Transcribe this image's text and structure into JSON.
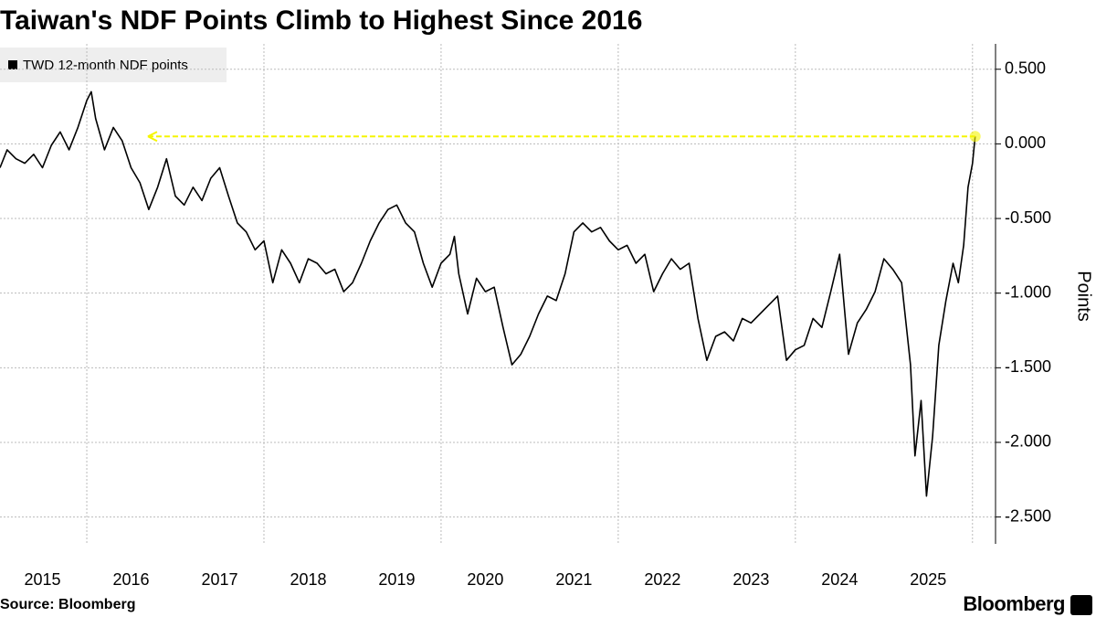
{
  "chart_data": {
    "type": "line",
    "title": "Taiwan's NDF Points Climb to Highest Since 2016",
    "y_label": "Points",
    "source": "Source: Bloomberg",
    "brand": "Bloomberg",
    "xlim": [
      2015.02,
      2026.26
    ],
    "ylim": [
      -2.68,
      0.67
    ],
    "xticks": [
      {
        "value": 2015.5,
        "label": "2015"
      },
      {
        "value": 2016.5,
        "label": "2016"
      },
      {
        "value": 2017.5,
        "label": "2017"
      },
      {
        "value": 2018.5,
        "label": "2018"
      },
      {
        "value": 2019.5,
        "label": "2019"
      },
      {
        "value": 2020.5,
        "label": "2020"
      },
      {
        "value": 2021.5,
        "label": "2021"
      },
      {
        "value": 2022.5,
        "label": "2022"
      },
      {
        "value": 2023.5,
        "label": "2023"
      },
      {
        "value": 2024.5,
        "label": "2024"
      },
      {
        "value": 2025.5,
        "label": "2025"
      }
    ],
    "xgrid": [
      2016,
      2018,
      2020,
      2022,
      2024,
      2026
    ],
    "yticks": [
      {
        "value": 0.5,
        "label": "0.500"
      },
      {
        "value": 0,
        "label": "0.000"
      },
      {
        "value": -0.5,
        "label": "-0.500"
      },
      {
        "value": -1,
        "label": "-1.000"
      },
      {
        "value": -1.5,
        "label": "-1.500"
      },
      {
        "value": -2,
        "label": "-2.000"
      },
      {
        "value": -2.5,
        "label": "-2.500"
      }
    ],
    "grid": true,
    "legend": "top-left",
    "reference_line": {
      "value": 0.05,
      "x": [
        2016.69,
        2026.03
      ],
      "color": "#f5f500"
    },
    "x": [
      2015.02,
      2015.1,
      2015.2,
      2015.3,
      2015.4,
      2015.5,
      2015.6,
      2015.7,
      2015.8,
      2015.9,
      2016.0,
      2016.05,
      2016.1,
      2016.2,
      2016.3,
      2016.4,
      2016.5,
      2016.6,
      2016.7,
      2016.8,
      2016.9,
      2017.0,
      2017.1,
      2017.2,
      2017.3,
      2017.4,
      2017.5,
      2017.6,
      2017.7,
      2017.8,
      2017.9,
      2018.0,
      2018.1,
      2018.2,
      2018.3,
      2018.4,
      2018.5,
      2018.6,
      2018.7,
      2018.8,
      2018.9,
      2019.0,
      2019.1,
      2019.2,
      2019.3,
      2019.4,
      2019.5,
      2019.6,
      2019.7,
      2019.8,
      2019.9,
      2020.0,
      2020.1,
      2020.15,
      2020.2,
      2020.3,
      2020.4,
      2020.5,
      2020.6,
      2020.7,
      2020.8,
      2020.9,
      2021.0,
      2021.1,
      2021.2,
      2021.3,
      2021.4,
      2021.5,
      2021.6,
      2021.7,
      2021.8,
      2021.9,
      2022.0,
      2022.1,
      2022.2,
      2022.3,
      2022.4,
      2022.5,
      2022.6,
      2022.7,
      2022.8,
      2022.9,
      2023.0,
      2023.1,
      2023.2,
      2023.3,
      2023.4,
      2023.5,
      2023.6,
      2023.7,
      2023.8,
      2023.9,
      2024.0,
      2024.1,
      2024.2,
      2024.3,
      2024.4,
      2024.5,
      2024.6,
      2024.7,
      2024.8,
      2024.9,
      2025.0,
      2025.1,
      2025.2,
      2025.3,
      2025.35,
      2025.42,
      2025.48,
      2025.55,
      2025.62,
      2025.7,
      2025.78,
      2025.84,
      2025.9,
      2025.95,
      2026.0,
      2026.03
    ],
    "series": [
      {
        "name": "TWD 12-month NDF points",
        "color": "#000000",
        "values": [
          -0.16,
          -0.04,
          -0.1,
          -0.13,
          -0.07,
          -0.16,
          -0.01,
          0.08,
          -0.04,
          0.11,
          0.29,
          0.35,
          0.17,
          -0.04,
          0.11,
          0.02,
          -0.16,
          -0.26,
          -0.44,
          -0.29,
          -0.1,
          -0.35,
          -0.41,
          -0.29,
          -0.38,
          -0.23,
          -0.16,
          -0.35,
          -0.53,
          -0.59,
          -0.71,
          -0.65,
          -0.93,
          -0.71,
          -0.8,
          -0.93,
          -0.77,
          -0.8,
          -0.87,
          -0.84,
          -0.99,
          -0.93,
          -0.8,
          -0.65,
          -0.53,
          -0.44,
          -0.41,
          -0.53,
          -0.59,
          -0.8,
          -0.96,
          -0.8,
          -0.74,
          -0.62,
          -0.87,
          -1.14,
          -0.9,
          -0.99,
          -0.96,
          -1.23,
          -1.48,
          -1.41,
          -1.29,
          -1.14,
          -1.02,
          -1.05,
          -0.87,
          -0.59,
          -0.53,
          -0.59,
          -0.56,
          -0.65,
          -0.71,
          -0.68,
          -0.8,
          -0.74,
          -0.99,
          -0.87,
          -0.77,
          -0.84,
          -0.8,
          -1.17,
          -1.45,
          -1.29,
          -1.26,
          -1.32,
          -1.17,
          -1.2,
          -1.14,
          -1.08,
          -1.02,
          -1.45,
          -1.38,
          -1.35,
          -1.17,
          -1.23,
          -0.99,
          -0.74,
          -1.41,
          -1.2,
          -1.11,
          -0.99,
          -0.77,
          -0.84,
          -0.93,
          -1.48,
          -2.09,
          -1.72,
          -2.36,
          -1.96,
          -1.35,
          -1.05,
          -0.8,
          -0.93,
          -0.68,
          -0.29,
          -0.13,
          0.05
        ]
      }
    ]
  }
}
